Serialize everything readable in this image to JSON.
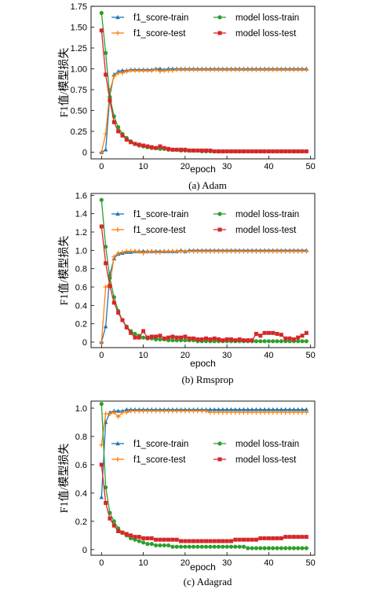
{
  "colors": {
    "f1_train": "#1f77b4",
    "f1_test": "#ff7f0e",
    "loss_train": "#2ca02c",
    "loss_test": "#d62728"
  },
  "chart_data": [
    {
      "type": "line",
      "caption": "(a) Adam",
      "xlabel": "epoch",
      "ylabel": "F1值/模型损失",
      "xlim": [
        -2.5,
        51
      ],
      "ylim": [
        -0.08,
        1.75
      ],
      "xticks": [
        0,
        10,
        20,
        30,
        40,
        50
      ],
      "yticks": [
        0,
        0.25,
        0.5,
        0.75,
        1.0,
        1.25,
        1.5,
        1.75
      ],
      "ytick_labels": [
        "0",
        "0.25",
        "0.50",
        "0.75",
        "1.00",
        "1.25",
        "1.50",
        "1.75"
      ],
      "grid": false,
      "legend": "top",
      "x": [
        0,
        1,
        2,
        3,
        4,
        5,
        6,
        7,
        8,
        9,
        10,
        11,
        12,
        13,
        14,
        15,
        16,
        17,
        18,
        19,
        20,
        21,
        22,
        23,
        24,
        25,
        26,
        27,
        28,
        29,
        30,
        31,
        32,
        33,
        34,
        35,
        36,
        37,
        38,
        39,
        40,
        41,
        42,
        43,
        44,
        45,
        46,
        47,
        48,
        49
      ],
      "series": [
        {
          "name": "f1_score-train",
          "color_key": "f1_train",
          "marker": "triangle",
          "values": [
            0.0,
            0.03,
            0.68,
            0.93,
            0.97,
            0.98,
            0.98,
            0.99,
            0.99,
            0.99,
            0.99,
            0.99,
            0.99,
            1.0,
            1.0,
            0.99,
            1.0,
            1.0,
            1.0,
            1.0,
            1.0,
            1.0,
            1.0,
            1.0,
            1.0,
            1.0,
            1.0,
            1.0,
            1.0,
            1.0,
            1.0,
            1.0,
            1.0,
            1.0,
            1.0,
            1.0,
            1.0,
            1.0,
            1.0,
            1.0,
            1.0,
            1.0,
            1.0,
            1.0,
            1.0,
            1.0,
            1.0,
            1.0,
            1.0,
            1.0
          ]
        },
        {
          "name": "f1_score-test",
          "color_key": "f1_test",
          "marker": "plus",
          "values": [
            0.0,
            0.22,
            0.74,
            0.91,
            0.95,
            0.95,
            0.97,
            0.98,
            0.98,
            0.98,
            0.98,
            0.98,
            0.98,
            0.99,
            0.97,
            0.98,
            0.98,
            0.98,
            0.99,
            0.99,
            0.99,
            0.99,
            0.99,
            0.99,
            0.99,
            0.99,
            0.99,
            0.99,
            0.99,
            0.99,
            0.99,
            0.99,
            0.99,
            0.99,
            0.99,
            0.99,
            0.99,
            0.99,
            0.99,
            0.99,
            0.99,
            0.99,
            0.99,
            0.99,
            0.99,
            0.99,
            0.99,
            0.99,
            0.99,
            0.99
          ]
        },
        {
          "name": "model loss-train",
          "color_key": "loss_train",
          "marker": "circle",
          "values": [
            1.67,
            1.19,
            0.66,
            0.43,
            0.3,
            0.22,
            0.17,
            0.13,
            0.1,
            0.08,
            0.07,
            0.06,
            0.05,
            0.05,
            0.04,
            0.04,
            0.03,
            0.03,
            0.03,
            0.02,
            0.02,
            0.02,
            0.02,
            0.02,
            0.01,
            0.01,
            0.01,
            0.01,
            0.01,
            0.01,
            0.01,
            0.01,
            0.01,
            0.01,
            0.01,
            0.01,
            0.01,
            0.01,
            0.01,
            0.01,
            0.01,
            0.01,
            0.01,
            0.01,
            0.01,
            0.01,
            0.01,
            0.01,
            0.01,
            0.01
          ]
        },
        {
          "name": "model loss-test",
          "color_key": "loss_test",
          "marker": "square",
          "values": [
            1.46,
            0.93,
            0.62,
            0.36,
            0.25,
            0.2,
            0.15,
            0.12,
            0.1,
            0.09,
            0.08,
            0.07,
            0.06,
            0.05,
            0.07,
            0.05,
            0.04,
            0.03,
            0.03,
            0.03,
            0.03,
            0.02,
            0.02,
            0.02,
            0.02,
            0.02,
            0.02,
            0.01,
            0.01,
            0.01,
            0.01,
            0.01,
            0.01,
            0.01,
            0.01,
            0.01,
            0.01,
            0.01,
            0.01,
            0.01,
            0.01,
            0.01,
            0.01,
            0.01,
            0.01,
            0.01,
            0.01,
            0.01,
            0.01,
            0.01
          ]
        }
      ]
    },
    {
      "type": "line",
      "caption": "(b) Rmsprop",
      "xlabel": "epoch",
      "ylabel": "F1值/模型损失",
      "xlim": [
        -2.5,
        51
      ],
      "ylim": [
        -0.06,
        1.62
      ],
      "xticks": [
        0,
        10,
        20,
        30,
        40,
        50
      ],
      "yticks": [
        0,
        0.2,
        0.4,
        0.6,
        0.8,
        1.0,
        1.2,
        1.4,
        1.6
      ],
      "ytick_labels": [
        "0",
        "0.2",
        "0.4",
        "0.6",
        "0.8",
        "1.0",
        "1.2",
        "1.4",
        "1.6"
      ],
      "grid": false,
      "legend": "top",
      "x": [
        0,
        1,
        2,
        3,
        4,
        5,
        6,
        7,
        8,
        9,
        10,
        11,
        12,
        13,
        14,
        15,
        16,
        17,
        18,
        19,
        20,
        21,
        22,
        23,
        24,
        25,
        26,
        27,
        28,
        29,
        30,
        31,
        32,
        33,
        34,
        35,
        36,
        37,
        38,
        39,
        40,
        41,
        42,
        43,
        44,
        45,
        46,
        47,
        48,
        49
      ],
      "series": [
        {
          "name": "f1_score-train",
          "color_key": "f1_train",
          "marker": "triangle",
          "values": [
            0.0,
            0.17,
            0.74,
            0.91,
            0.96,
            0.97,
            0.98,
            0.98,
            0.99,
            0.99,
            0.99,
            0.99,
            0.99,
            0.99,
            0.99,
            0.99,
            0.99,
            0.99,
            0.99,
            1.0,
            0.99,
            1.0,
            1.0,
            1.0,
            1.0,
            1.0,
            1.0,
            1.0,
            1.0,
            1.0,
            1.0,
            1.0,
            1.0,
            1.0,
            1.0,
            1.0,
            1.0,
            1.0,
            1.0,
            1.0,
            1.0,
            1.0,
            1.0,
            1.0,
            1.0,
            1.0,
            1.0,
            1.0,
            1.0,
            1.0
          ]
        },
        {
          "name": "f1_score-test",
          "color_key": "f1_test",
          "marker": "plus",
          "values": [
            0.0,
            0.6,
            0.63,
            0.93,
            0.97,
            0.98,
            0.99,
            0.99,
            0.99,
            0.99,
            0.97,
            0.99,
            0.99,
            0.98,
            0.98,
            0.99,
            0.99,
            0.99,
            0.99,
            0.99,
            0.99,
            0.99,
            0.99,
            0.99,
            0.99,
            0.99,
            0.99,
            0.99,
            0.99,
            0.99,
            0.99,
            0.99,
            0.99,
            0.99,
            0.99,
            0.99,
            0.99,
            0.99,
            0.99,
            0.99,
            0.99,
            0.99,
            0.99,
            0.99,
            0.99,
            0.99,
            0.99,
            0.99,
            0.99,
            0.99
          ]
        },
        {
          "name": "model loss-train",
          "color_key": "loss_train",
          "marker": "circle",
          "values": [
            1.55,
            1.04,
            0.7,
            0.49,
            0.34,
            0.24,
            0.17,
            0.12,
            0.09,
            0.07,
            0.05,
            0.04,
            0.04,
            0.03,
            0.03,
            0.03,
            0.02,
            0.02,
            0.02,
            0.02,
            0.02,
            0.02,
            0.02,
            0.01,
            0.01,
            0.01,
            0.01,
            0.01,
            0.01,
            0.01,
            0.01,
            0.01,
            0.01,
            0.01,
            0.01,
            0.01,
            0.01,
            0.01,
            0.01,
            0.01,
            0.01,
            0.01,
            0.01,
            0.01,
            0.01,
            0.01,
            0.01,
            0.01,
            0.01,
            0.01
          ]
        },
        {
          "name": "model loss-test",
          "color_key": "loss_test",
          "marker": "square",
          "values": [
            1.26,
            0.86,
            0.61,
            0.43,
            0.32,
            0.24,
            0.16,
            0.1,
            0.05,
            0.05,
            0.12,
            0.05,
            0.06,
            0.06,
            0.07,
            0.04,
            0.05,
            0.06,
            0.05,
            0.05,
            0.06,
            0.04,
            0.04,
            0.03,
            0.03,
            0.04,
            0.03,
            0.04,
            0.03,
            0.02,
            0.03,
            0.03,
            0.02,
            0.03,
            0.02,
            0.02,
            0.02,
            0.09,
            0.07,
            0.1,
            0.1,
            0.1,
            0.09,
            0.08,
            0.04,
            0.04,
            0.03,
            0.05,
            0.07,
            0.1
          ]
        }
      ]
    },
    {
      "type": "line",
      "caption": "(c) Adagrad",
      "xlabel": "epoch",
      "ylabel": "F1值/模型损失",
      "xlim": [
        -2.5,
        51
      ],
      "ylim": [
        -0.04,
        1.05
      ],
      "xticks": [
        0,
        10,
        20,
        30,
        40,
        50
      ],
      "yticks": [
        0,
        0.2,
        0.4,
        0.6,
        0.8,
        1.0
      ],
      "ytick_labels": [
        "0",
        "0.2",
        "0.4",
        "0.6",
        "0.8",
        "1.0"
      ],
      "grid": false,
      "legend": "center",
      "x": [
        0,
        1,
        2,
        3,
        4,
        5,
        6,
        7,
        8,
        9,
        10,
        11,
        12,
        13,
        14,
        15,
        16,
        17,
        18,
        19,
        20,
        21,
        22,
        23,
        24,
        25,
        26,
        27,
        28,
        29,
        30,
        31,
        32,
        33,
        34,
        35,
        36,
        37,
        38,
        39,
        40,
        41,
        42,
        43,
        44,
        45,
        46,
        47,
        48,
        49
      ],
      "series": [
        {
          "name": "f1_score-train",
          "color_key": "f1_train",
          "marker": "triangle",
          "values": [
            0.37,
            0.9,
            0.97,
            0.98,
            0.98,
            0.98,
            0.99,
            0.99,
            0.99,
            0.99,
            0.99,
            0.99,
            0.99,
            0.99,
            0.99,
            0.99,
            0.99,
            0.99,
            0.99,
            0.99,
            0.99,
            0.99,
            0.99,
            0.99,
            0.99,
            0.99,
            0.99,
            0.99,
            0.99,
            0.99,
            0.99,
            0.99,
            0.99,
            0.99,
            0.99,
            0.99,
            0.99,
            0.99,
            0.99,
            0.99,
            0.99,
            0.99,
            0.99,
            0.99,
            0.99,
            0.99,
            0.99,
            0.99,
            0.99,
            0.99
          ]
        },
        {
          "name": "f1_score-test",
          "color_key": "f1_test",
          "marker": "plus",
          "values": [
            0.74,
            0.96,
            0.96,
            0.97,
            0.94,
            0.97,
            0.97,
            0.98,
            0.98,
            0.98,
            0.98,
            0.98,
            0.98,
            0.98,
            0.98,
            0.98,
            0.98,
            0.98,
            0.98,
            0.98,
            0.98,
            0.98,
            0.98,
            0.98,
            0.98,
            0.98,
            0.97,
            0.97,
            0.97,
            0.97,
            0.97,
            0.97,
            0.97,
            0.97,
            0.97,
            0.97,
            0.97,
            0.97,
            0.97,
            0.97,
            0.97,
            0.97,
            0.97,
            0.97,
            0.97,
            0.97,
            0.97,
            0.97,
            0.97,
            0.97
          ]
        },
        {
          "name": "model loss-train",
          "color_key": "loss_train",
          "marker": "circle",
          "values": [
            1.03,
            0.44,
            0.26,
            0.2,
            0.15,
            0.12,
            0.1,
            0.08,
            0.07,
            0.06,
            0.05,
            0.04,
            0.04,
            0.03,
            0.03,
            0.03,
            0.03,
            0.02,
            0.02,
            0.02,
            0.02,
            0.02,
            0.02,
            0.02,
            0.02,
            0.02,
            0.02,
            0.02,
            0.02,
            0.02,
            0.02,
            0.02,
            0.02,
            0.02,
            0.02,
            0.01,
            0.01,
            0.01,
            0.01,
            0.01,
            0.01,
            0.01,
            0.01,
            0.01,
            0.01,
            0.01,
            0.01,
            0.01,
            0.01,
            0.01
          ]
        },
        {
          "name": "model loss-test",
          "color_key": "loss_test",
          "marker": "square",
          "values": [
            0.6,
            0.33,
            0.22,
            0.17,
            0.13,
            0.12,
            0.11,
            0.1,
            0.09,
            0.09,
            0.08,
            0.08,
            0.08,
            0.07,
            0.07,
            0.07,
            0.07,
            0.07,
            0.07,
            0.06,
            0.06,
            0.06,
            0.06,
            0.06,
            0.06,
            0.06,
            0.06,
            0.06,
            0.06,
            0.06,
            0.06,
            0.06,
            0.07,
            0.07,
            0.07,
            0.07,
            0.07,
            0.07,
            0.08,
            0.08,
            0.08,
            0.08,
            0.08,
            0.08,
            0.09,
            0.09,
            0.09,
            0.09,
            0.09,
            0.09
          ]
        }
      ]
    }
  ]
}
